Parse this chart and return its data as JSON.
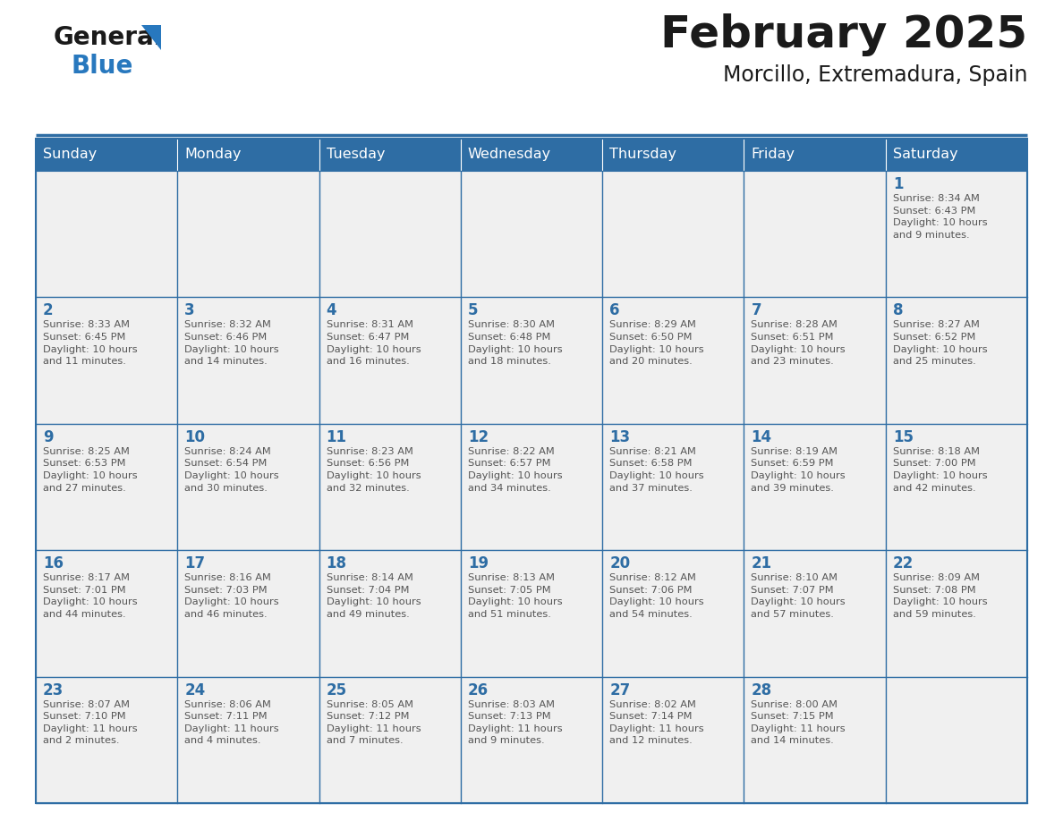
{
  "title": "February 2025",
  "subtitle": "Morcillo, Extremadura, Spain",
  "days_of_week": [
    "Sunday",
    "Monday",
    "Tuesday",
    "Wednesday",
    "Thursday",
    "Friday",
    "Saturday"
  ],
  "header_bg": "#2E6DA4",
  "header_text": "#FFFFFF",
  "cell_bg": "#F0F0F0",
  "border_color": "#2E6DA4",
  "day_number_color": "#2E6DA4",
  "text_color": "#555555",
  "title_color": "#1a1a1a",
  "logo_blue_color": "#2878BE",
  "weeks": [
    [
      {
        "day": null,
        "info": null
      },
      {
        "day": null,
        "info": null
      },
      {
        "day": null,
        "info": null
      },
      {
        "day": null,
        "info": null
      },
      {
        "day": null,
        "info": null
      },
      {
        "day": null,
        "info": null
      },
      {
        "day": 1,
        "info": "Sunrise: 8:34 AM\nSunset: 6:43 PM\nDaylight: 10 hours\nand 9 minutes."
      }
    ],
    [
      {
        "day": 2,
        "info": "Sunrise: 8:33 AM\nSunset: 6:45 PM\nDaylight: 10 hours\nand 11 minutes."
      },
      {
        "day": 3,
        "info": "Sunrise: 8:32 AM\nSunset: 6:46 PM\nDaylight: 10 hours\nand 14 minutes."
      },
      {
        "day": 4,
        "info": "Sunrise: 8:31 AM\nSunset: 6:47 PM\nDaylight: 10 hours\nand 16 minutes."
      },
      {
        "day": 5,
        "info": "Sunrise: 8:30 AM\nSunset: 6:48 PM\nDaylight: 10 hours\nand 18 minutes."
      },
      {
        "day": 6,
        "info": "Sunrise: 8:29 AM\nSunset: 6:50 PM\nDaylight: 10 hours\nand 20 minutes."
      },
      {
        "day": 7,
        "info": "Sunrise: 8:28 AM\nSunset: 6:51 PM\nDaylight: 10 hours\nand 23 minutes."
      },
      {
        "day": 8,
        "info": "Sunrise: 8:27 AM\nSunset: 6:52 PM\nDaylight: 10 hours\nand 25 minutes."
      }
    ],
    [
      {
        "day": 9,
        "info": "Sunrise: 8:25 AM\nSunset: 6:53 PM\nDaylight: 10 hours\nand 27 minutes."
      },
      {
        "day": 10,
        "info": "Sunrise: 8:24 AM\nSunset: 6:54 PM\nDaylight: 10 hours\nand 30 minutes."
      },
      {
        "day": 11,
        "info": "Sunrise: 8:23 AM\nSunset: 6:56 PM\nDaylight: 10 hours\nand 32 minutes."
      },
      {
        "day": 12,
        "info": "Sunrise: 8:22 AM\nSunset: 6:57 PM\nDaylight: 10 hours\nand 34 minutes."
      },
      {
        "day": 13,
        "info": "Sunrise: 8:21 AM\nSunset: 6:58 PM\nDaylight: 10 hours\nand 37 minutes."
      },
      {
        "day": 14,
        "info": "Sunrise: 8:19 AM\nSunset: 6:59 PM\nDaylight: 10 hours\nand 39 minutes."
      },
      {
        "day": 15,
        "info": "Sunrise: 8:18 AM\nSunset: 7:00 PM\nDaylight: 10 hours\nand 42 minutes."
      }
    ],
    [
      {
        "day": 16,
        "info": "Sunrise: 8:17 AM\nSunset: 7:01 PM\nDaylight: 10 hours\nand 44 minutes."
      },
      {
        "day": 17,
        "info": "Sunrise: 8:16 AM\nSunset: 7:03 PM\nDaylight: 10 hours\nand 46 minutes."
      },
      {
        "day": 18,
        "info": "Sunrise: 8:14 AM\nSunset: 7:04 PM\nDaylight: 10 hours\nand 49 minutes."
      },
      {
        "day": 19,
        "info": "Sunrise: 8:13 AM\nSunset: 7:05 PM\nDaylight: 10 hours\nand 51 minutes."
      },
      {
        "day": 20,
        "info": "Sunrise: 8:12 AM\nSunset: 7:06 PM\nDaylight: 10 hours\nand 54 minutes."
      },
      {
        "day": 21,
        "info": "Sunrise: 8:10 AM\nSunset: 7:07 PM\nDaylight: 10 hours\nand 57 minutes."
      },
      {
        "day": 22,
        "info": "Sunrise: 8:09 AM\nSunset: 7:08 PM\nDaylight: 10 hours\nand 59 minutes."
      }
    ],
    [
      {
        "day": 23,
        "info": "Sunrise: 8:07 AM\nSunset: 7:10 PM\nDaylight: 11 hours\nand 2 minutes."
      },
      {
        "day": 24,
        "info": "Sunrise: 8:06 AM\nSunset: 7:11 PM\nDaylight: 11 hours\nand 4 minutes."
      },
      {
        "day": 25,
        "info": "Sunrise: 8:05 AM\nSunset: 7:12 PM\nDaylight: 11 hours\nand 7 minutes."
      },
      {
        "day": 26,
        "info": "Sunrise: 8:03 AM\nSunset: 7:13 PM\nDaylight: 11 hours\nand 9 minutes."
      },
      {
        "day": 27,
        "info": "Sunrise: 8:02 AM\nSunset: 7:14 PM\nDaylight: 11 hours\nand 12 minutes."
      },
      {
        "day": 28,
        "info": "Sunrise: 8:00 AM\nSunset: 7:15 PM\nDaylight: 11 hours\nand 14 minutes."
      },
      {
        "day": null,
        "info": null
      }
    ]
  ],
  "fig_width": 11.88,
  "fig_height": 9.18,
  "dpi": 100
}
